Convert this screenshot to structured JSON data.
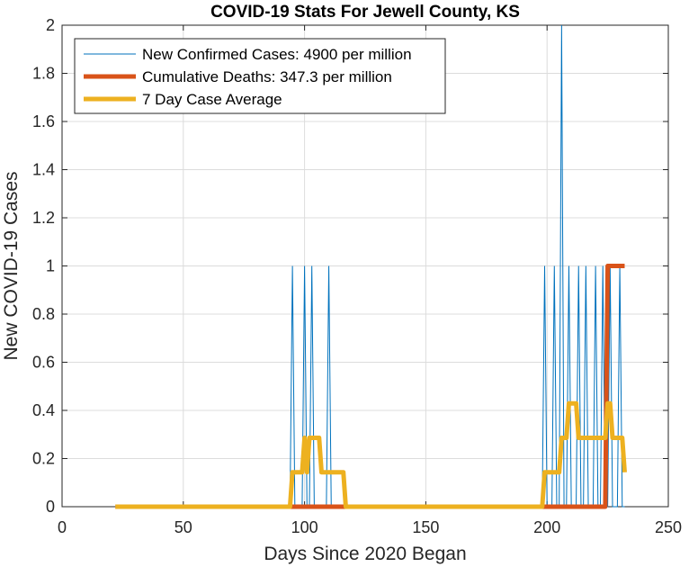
{
  "chart_data": {
    "type": "line",
    "title": "COVID-19 Stats For Jewell County, KS",
    "xlabel": "Days Since 2020 Began",
    "ylabel": "New COVID-19 Cases",
    "xlim": [
      0,
      250
    ],
    "ylim": [
      0,
      2
    ],
    "x_ticks": [
      "0",
      "50",
      "100",
      "150",
      "200",
      "250"
    ],
    "y_ticks": [
      "0",
      "0.2",
      "0.4",
      "0.6",
      "0.8",
      "1",
      "1.2",
      "1.4",
      "1.6",
      "1.8",
      "2"
    ],
    "grid": true,
    "legend_position": "top-left",
    "colors": {
      "new_cases": "#0072BD",
      "deaths": "#D95319",
      "average": "#EDB120"
    },
    "series": [
      {
        "name": "New Confirmed Cases: 4900 per million",
        "spikes": [
          {
            "x": 95,
            "y": 1
          },
          {
            "x": 100,
            "y": 1
          },
          {
            "x": 103,
            "y": 1
          },
          {
            "x": 110,
            "y": 1
          },
          {
            "x": 199,
            "y": 1
          },
          {
            "x": 203,
            "y": 1
          },
          {
            "x": 206,
            "y": 2
          },
          {
            "x": 209,
            "y": 1
          },
          {
            "x": 213,
            "y": 1
          },
          {
            "x": 216,
            "y": 1
          },
          {
            "x": 220,
            "y": 1
          },
          {
            "x": 223,
            "y": 1
          },
          {
            "x": 226,
            "y": 1
          },
          {
            "x": 230,
            "y": 1
          }
        ],
        "x_range": [
          22,
          232
        ]
      },
      {
        "name": "Cumulative Deaths: 347.3 per million",
        "x": [
          22,
          224,
          225,
          232
        ],
        "y": [
          0,
          0,
          1,
          1
        ]
      },
      {
        "name": "7 Day Case Average",
        "x": [
          22,
          94,
          95,
          99,
          100,
          101,
          102,
          106,
          107,
          116,
          117,
          198,
          199,
          205,
          206,
          208,
          209,
          212,
          213,
          224,
          225,
          226,
          227,
          231,
          232
        ],
        "y": [
          0,
          0,
          0.143,
          0.143,
          0.286,
          0.143,
          0.286,
          0.286,
          0.143,
          0.143,
          0,
          0,
          0.143,
          0.143,
          0.286,
          0.286,
          0.429,
          0.429,
          0.286,
          0.286,
          0.429,
          0.429,
          0.286,
          0.286,
          0.143
        ]
      }
    ]
  }
}
